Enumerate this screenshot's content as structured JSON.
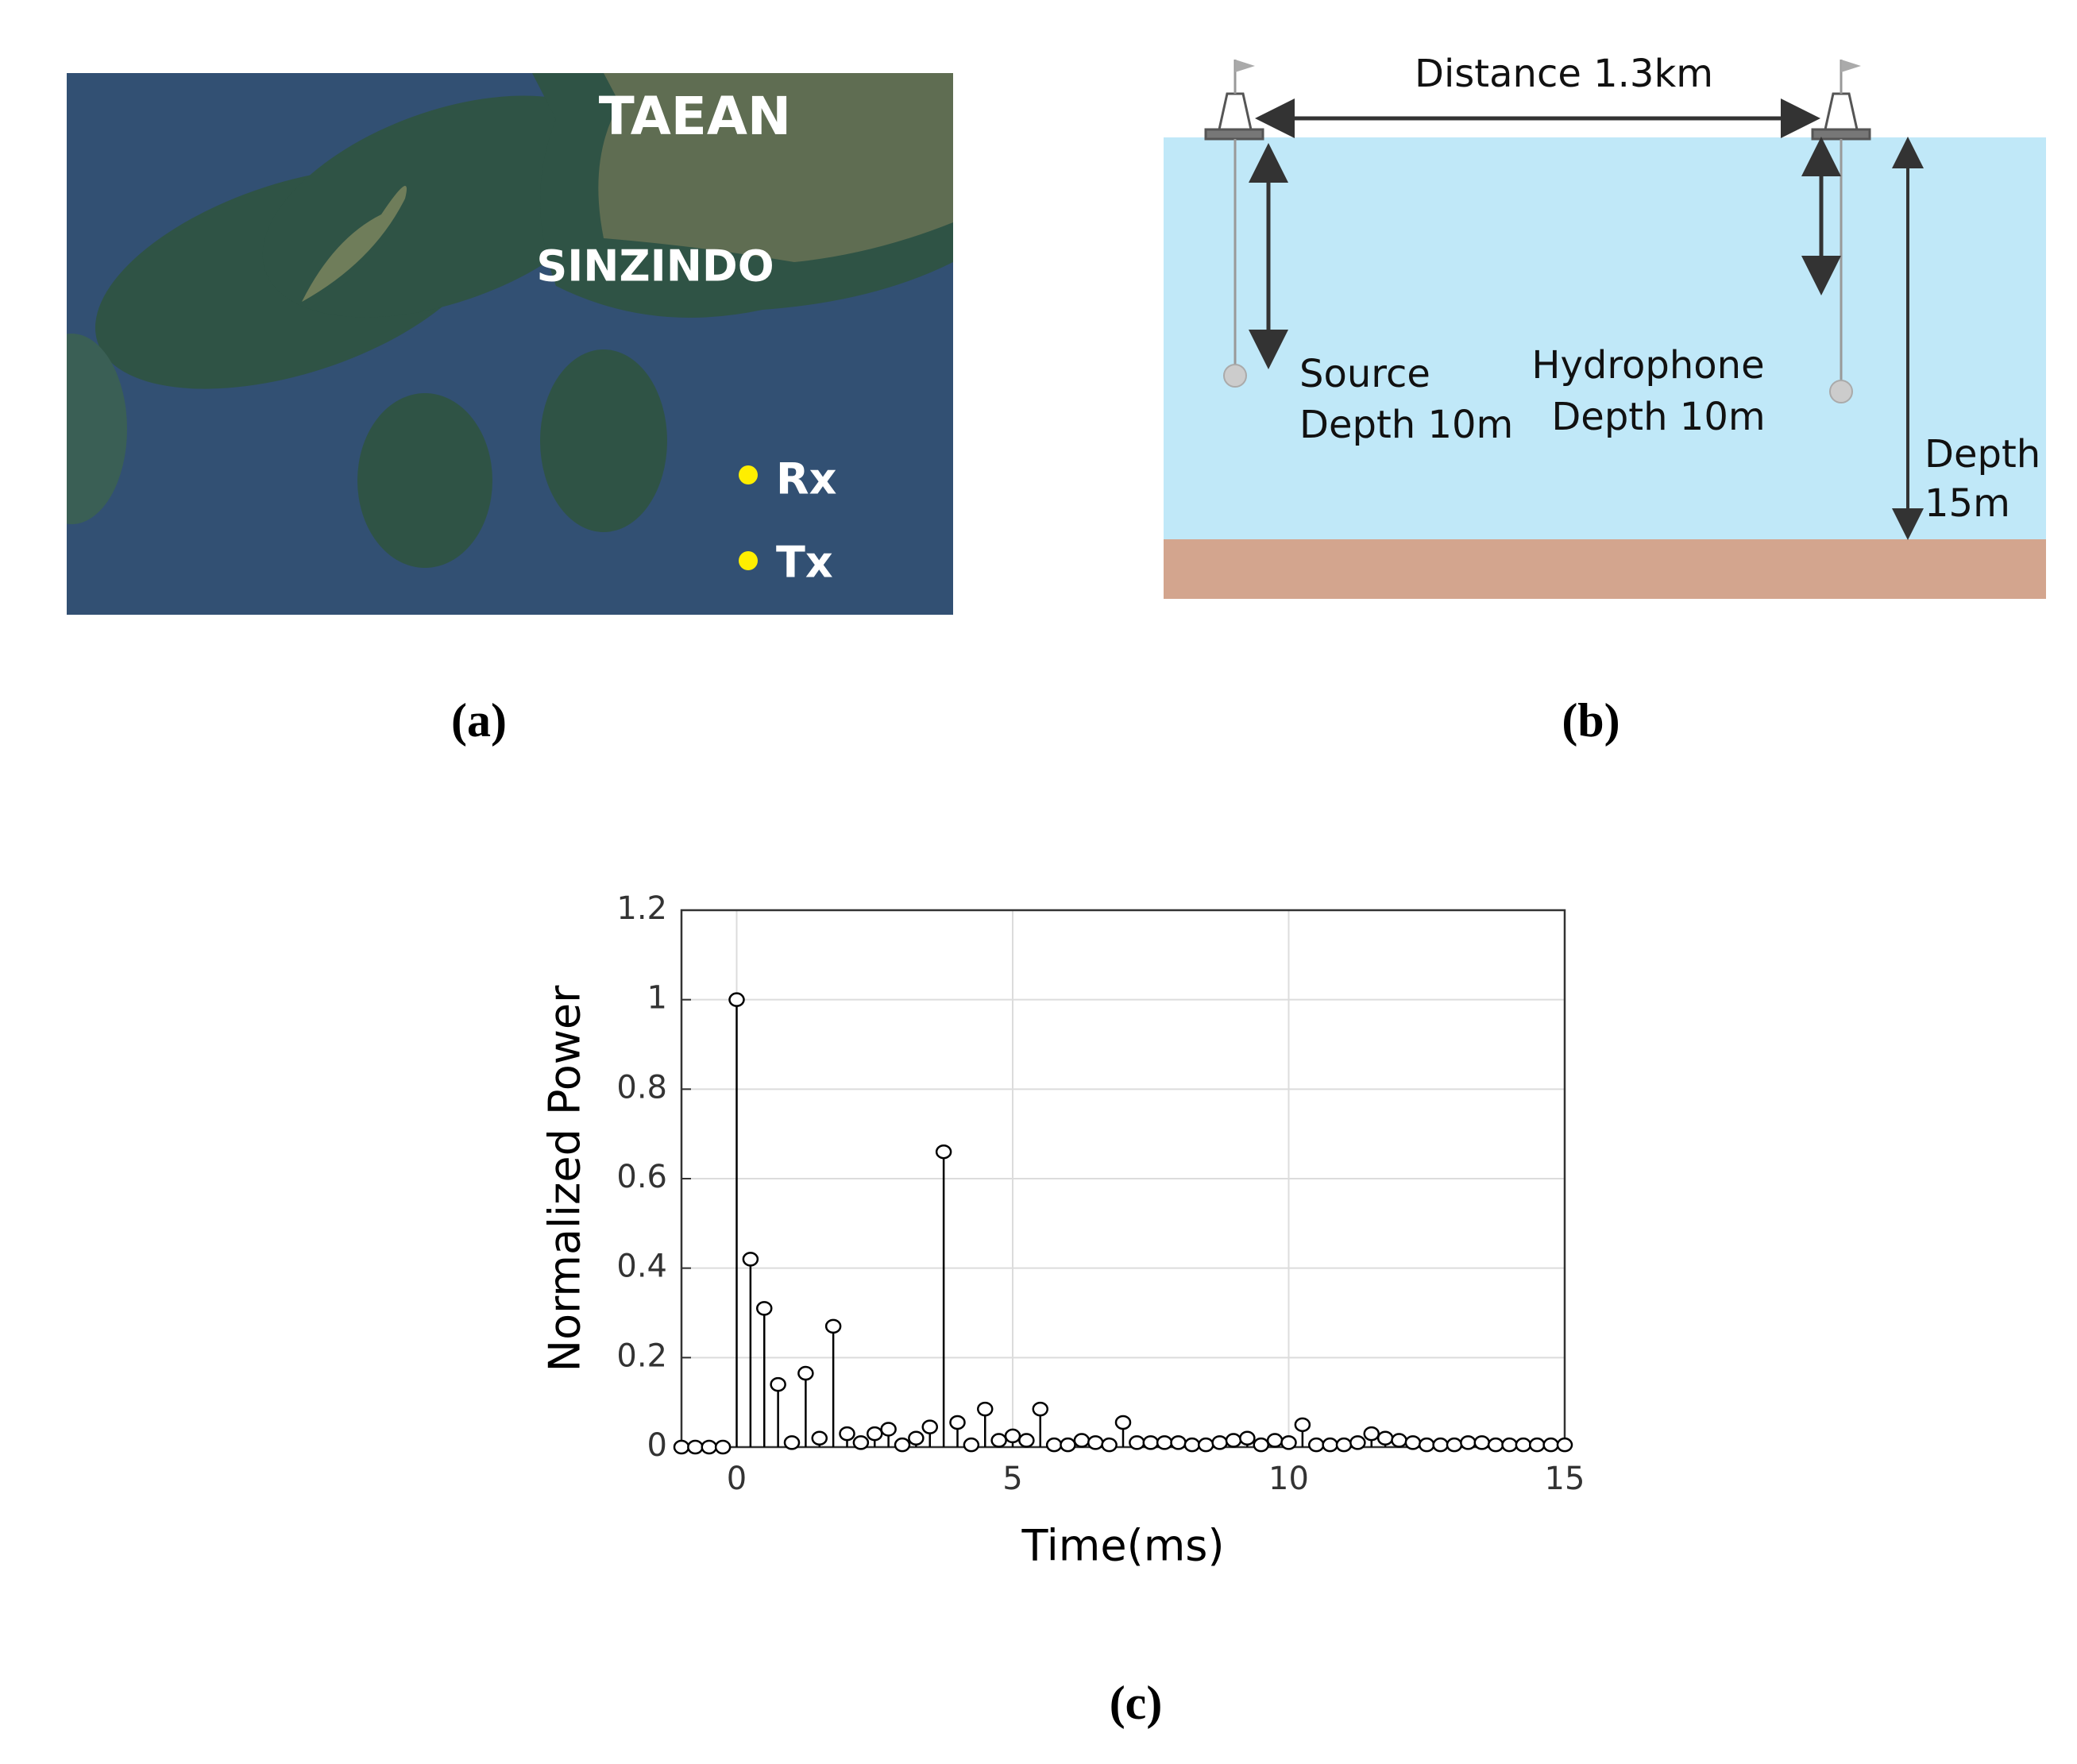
{
  "map": {
    "labels": [
      "TAEAN",
      "SINZINDO",
      "Rx",
      "Tx"
    ],
    "caption": "(a)"
  },
  "diagram": {
    "distance": "Distance 1.3km",
    "source": [
      "Source",
      "Depth 10m"
    ],
    "hydrophone": [
      "Hydrophone",
      "Depth 10m"
    ],
    "depth": [
      "Depth",
      "15m"
    ],
    "caption": "(b)"
  },
  "chart_data": {
    "type": "stem",
    "xlabel": "Time(ms)",
    "ylabel": "Normalized Power",
    "caption": "(c)",
    "x": [
      -1,
      -0.75,
      -0.5,
      -0.25,
      0,
      0.25,
      0.5,
      0.75,
      1,
      1.25,
      1.5,
      1.75,
      2,
      2.25,
      2.5,
      2.75,
      3,
      3.25,
      3.5,
      3.75,
      4,
      4.25,
      4.5,
      4.75,
      5,
      5.25,
      5.5,
      5.75,
      6,
      6.25,
      6.5,
      6.75,
      7,
      7.25,
      7.5,
      7.75,
      8,
      8.25,
      8.5,
      8.75,
      9,
      9.25,
      9.5,
      9.75,
      10,
      10.25,
      10.5,
      10.75,
      11,
      11.25,
      11.5,
      11.75,
      12,
      12.25,
      12.5,
      12.75,
      13,
      13.25,
      13.5,
      13.75,
      14,
      14.25,
      14.5,
      14.75,
      15
    ],
    "values": [
      0,
      0,
      0,
      0,
      1.0,
      0.42,
      0.31,
      0.14,
      0.01,
      0.165,
      0.02,
      0.27,
      0.03,
      0.01,
      0.03,
      0.04,
      0.005,
      0.02,
      0.045,
      0.66,
      0.055,
      0.005,
      0.085,
      0.015,
      0.025,
      0.015,
      0.085,
      0.005,
      0.005,
      0.015,
      0.01,
      0.005,
      0.055,
      0.01,
      0.01,
      0.01,
      0.01,
      0.005,
      0.005,
      0.01,
      0.015,
      0.02,
      0.005,
      0.015,
      0.01,
      0.05,
      0.005,
      0.005,
      0.005,
      0.01,
      0.03,
      0.02,
      0.015,
      0.01,
      0.005,
      0.005,
      0.005,
      0.01,
      0.01,
      0.005,
      0.005,
      0.005,
      0.005,
      0.005,
      0.005
    ],
    "color": "#000000",
    "xlim": [
      -1,
      15
    ],
    "xticks": [
      0,
      5,
      10,
      15
    ],
    "ylim": [
      0,
      1.2
    ],
    "yticks": [
      0,
      0.2,
      0.4,
      0.6,
      0.8,
      1,
      1.2
    ],
    "grid": true
  }
}
